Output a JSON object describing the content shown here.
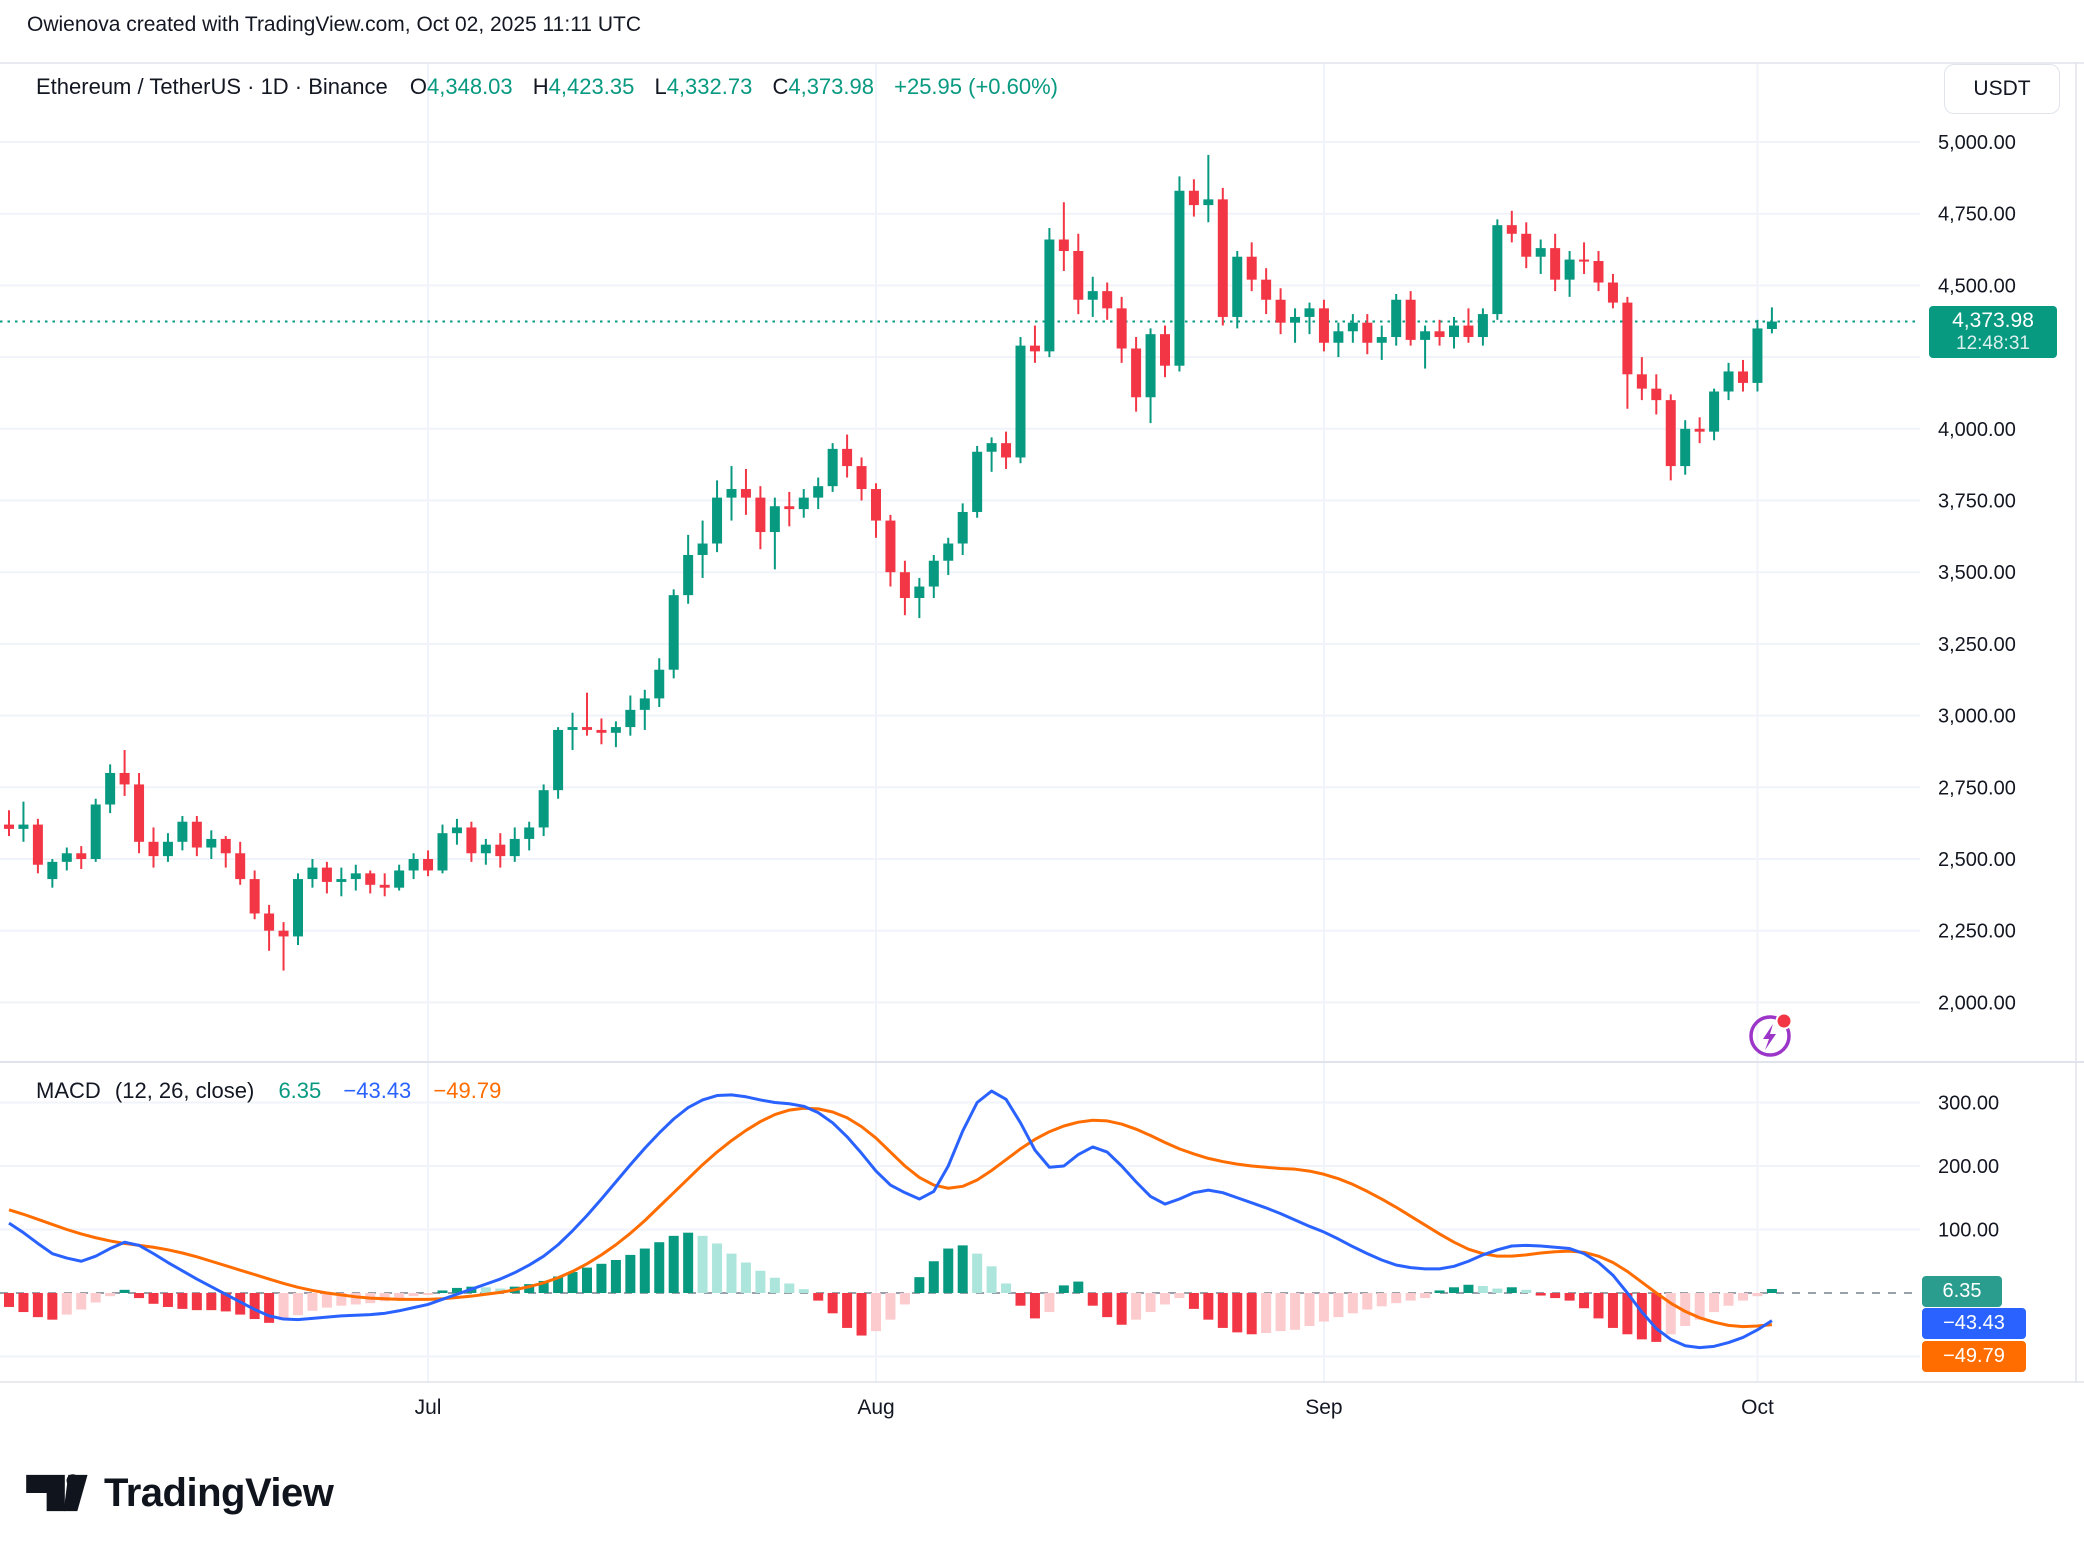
{
  "header": {
    "attribution": "Owienova created with TradingView.com, Oct 02, 2025 11:11 UTC"
  },
  "legend": {
    "symbol": "Ethereum / TetherUS · 1D · Binance",
    "o_label": "O",
    "o": "4,348.03",
    "h_label": "H",
    "h": "4,423.35",
    "l_label": "L",
    "l": "4,332.73",
    "c_label": "C",
    "c": "4,373.98",
    "change": "+25.95 (+0.60%)"
  },
  "price_axis": {
    "currency": "USDT",
    "last_price_label": "4,373.98",
    "countdown": "12:48:31"
  },
  "macd_legend": {
    "title": "MACD",
    "params": "(12, 26, close)",
    "hist_value": "6.35",
    "macd_value": "−43.43",
    "signal_value": "−49.79"
  },
  "badges": {
    "hist": "6.35",
    "macd": "−43.43",
    "signal": "−49.79"
  },
  "logo": {
    "text": "TradingView"
  },
  "colors": {
    "up": "#089981",
    "down": "#f23645",
    "macd_line": "#2962ff",
    "signal_line": "#ff6d00",
    "hist_up": "#089981",
    "hist_up_fade": "#ace5dc",
    "hist_down": "#f23645",
    "hist_down_fade": "#fccbcd",
    "grid": "#f0f3fa",
    "border": "#e0e3eb",
    "axis_text": "#131722",
    "zero_dash": "#9aa0aa",
    "last_price_line": "#089981"
  },
  "chart_data": {
    "type": "candlestick_with_macd",
    "title": "Ethereum / TetherUS 1D Binance",
    "price_axis_range": [
      2000,
      5000
    ],
    "macd_axis_range": [
      -145,
      360
    ],
    "price_ticks": [
      {
        "label": "5,000.00",
        "value": 5000
      },
      {
        "label": "4,750.00",
        "value": 4750
      },
      {
        "label": "4,500.00",
        "value": 4500
      },
      {
        "label": null,
        "value": 4250
      },
      {
        "label": "4,000.00",
        "value": 4000
      },
      {
        "label": "3,750.00",
        "value": 3750
      },
      {
        "label": "3,500.00",
        "value": 3500
      },
      {
        "label": "3,250.00",
        "value": 3250
      },
      {
        "label": "3,000.00",
        "value": 3000
      },
      {
        "label": "2,750.00",
        "value": 2750
      },
      {
        "label": "2,500.00",
        "value": 2500
      },
      {
        "label": "2,250.00",
        "value": 2250
      },
      {
        "label": "2,000.00",
        "value": 2000
      }
    ],
    "macd_ticks": [
      {
        "label": "300.00",
        "value": 300
      },
      {
        "label": "200.00",
        "value": 200
      },
      {
        "label": "100.00",
        "value": 100
      },
      {
        "label": null,
        "value": -100
      }
    ],
    "months": [
      {
        "label": "Jul",
        "i": 29
      },
      {
        "label": "Aug",
        "i": 60
      },
      {
        "label": "Sep",
        "i": 91
      },
      {
        "label": "Oct",
        "i": 121
      }
    ],
    "last_price": 4373.98,
    "candles": [
      [
        2620,
        2670,
        2580,
        2605
      ],
      [
        2605,
        2700,
        2560,
        2620
      ],
      [
        2620,
        2640,
        2450,
        2480
      ],
      [
        2430,
        2500,
        2400,
        2490
      ],
      [
        2490,
        2540,
        2460,
        2520
      ],
      [
        2520,
        2545,
        2465,
        2500
      ],
      [
        2500,
        2710,
        2490,
        2690
      ],
      [
        2690,
        2830,
        2660,
        2800
      ],
      [
        2800,
        2880,
        2720,
        2760
      ],
      [
        2760,
        2800,
        2520,
        2560
      ],
      [
        2560,
        2610,
        2470,
        2510
      ],
      [
        2510,
        2590,
        2490,
        2560
      ],
      [
        2560,
        2650,
        2530,
        2630
      ],
      [
        2630,
        2650,
        2510,
        2540
      ],
      [
        2540,
        2600,
        2500,
        2570
      ],
      [
        2570,
        2580,
        2470,
        2520
      ],
      [
        2520,
        2560,
        2410,
        2430
      ],
      [
        2430,
        2460,
        2290,
        2310
      ],
      [
        2310,
        2340,
        2180,
        2250
      ],
      [
        2250,
        2280,
        2111,
        2230
      ],
      [
        2230,
        2450,
        2200,
        2430
      ],
      [
        2430,
        2500,
        2400,
        2470
      ],
      [
        2470,
        2490,
        2380,
        2420
      ],
      [
        2420,
        2470,
        2370,
        2430
      ],
      [
        2430,
        2480,
        2390,
        2450
      ],
      [
        2450,
        2460,
        2380,
        2410
      ],
      [
        2410,
        2450,
        2370,
        2400
      ],
      [
        2400,
        2480,
        2390,
        2460
      ],
      [
        2460,
        2520,
        2430,
        2500
      ],
      [
        2500,
        2530,
        2440,
        2460
      ],
      [
        2460,
        2620,
        2450,
        2590
      ],
      [
        2590,
        2640,
        2550,
        2610
      ],
      [
        2610,
        2630,
        2490,
        2520
      ],
      [
        2520,
        2570,
        2480,
        2550
      ],
      [
        2550,
        2590,
        2470,
        2510
      ],
      [
        2510,
        2610,
        2490,
        2570
      ],
      [
        2570,
        2630,
        2530,
        2610
      ],
      [
        2610,
        2760,
        2580,
        2740
      ],
      [
        2740,
        2960,
        2710,
        2950
      ],
      [
        2950,
        3010,
        2880,
        2960
      ],
      [
        2960,
        3080,
        2930,
        2950
      ],
      [
        2950,
        2990,
        2900,
        2940
      ],
      [
        2940,
        2980,
        2890,
        2960
      ],
      [
        2960,
        3070,
        2930,
        3020
      ],
      [
        3020,
        3090,
        2950,
        3060
      ],
      [
        3060,
        3200,
        3030,
        3160
      ],
      [
        3160,
        3440,
        3130,
        3420
      ],
      [
        3420,
        3630,
        3390,
        3560
      ],
      [
        3560,
        3680,
        3480,
        3600
      ],
      [
        3600,
        3820,
        3570,
        3760
      ],
      [
        3760,
        3870,
        3680,
        3790
      ],
      [
        3790,
        3860,
        3700,
        3760
      ],
      [
        3760,
        3800,
        3580,
        3640
      ],
      [
        3640,
        3760,
        3510,
        3730
      ],
      [
        3730,
        3780,
        3660,
        3720
      ],
      [
        3720,
        3790,
        3690,
        3760
      ],
      [
        3760,
        3830,
        3720,
        3800
      ],
      [
        3800,
        3950,
        3780,
        3930
      ],
      [
        3930,
        3980,
        3830,
        3870
      ],
      [
        3870,
        3900,
        3750,
        3790
      ],
      [
        3790,
        3810,
        3620,
        3680
      ],
      [
        3680,
        3700,
        3450,
        3500
      ],
      [
        3500,
        3540,
        3350,
        3410
      ],
      [
        3410,
        3480,
        3340,
        3450
      ],
      [
        3450,
        3560,
        3410,
        3540
      ],
      [
        3540,
        3620,
        3490,
        3600
      ],
      [
        3600,
        3740,
        3560,
        3710
      ],
      [
        3710,
        3940,
        3690,
        3920
      ],
      [
        3920,
        3970,
        3850,
        3950
      ],
      [
        3950,
        3990,
        3860,
        3900
      ],
      [
        3900,
        4320,
        3880,
        4290
      ],
      [
        4290,
        4360,
        4230,
        4270
      ],
      [
        4270,
        4700,
        4250,
        4660
      ],
      [
        4660,
        4790,
        4550,
        4620
      ],
      [
        4620,
        4680,
        4400,
        4450
      ],
      [
        4450,
        4530,
        4390,
        4480
      ],
      [
        4480,
        4510,
        4380,
        4420
      ],
      [
        4420,
        4460,
        4230,
        4280
      ],
      [
        4280,
        4320,
        4060,
        4110
      ],
      [
        4110,
        4350,
        4020,
        4330
      ],
      [
        4330,
        4360,
        4180,
        4220
      ],
      [
        4220,
        4880,
        4200,
        4830
      ],
      [
        4830,
        4870,
        4740,
        4780
      ],
      [
        4780,
        4955,
        4720,
        4800
      ],
      [
        4800,
        4840,
        4360,
        4390
      ],
      [
        4390,
        4620,
        4350,
        4600
      ],
      [
        4600,
        4650,
        4480,
        4520
      ],
      [
        4520,
        4560,
        4400,
        4450
      ],
      [
        4450,
        4490,
        4330,
        4370
      ],
      [
        4370,
        4420,
        4300,
        4390
      ],
      [
        4390,
        4440,
        4330,
        4420
      ],
      [
        4420,
        4450,
        4270,
        4300
      ],
      [
        4300,
        4370,
        4250,
        4340
      ],
      [
        4340,
        4400,
        4300,
        4370
      ],
      [
        4370,
        4400,
        4260,
        4300
      ],
      [
        4300,
        4360,
        4240,
        4320
      ],
      [
        4320,
        4470,
        4290,
        4450
      ],
      [
        4450,
        4480,
        4290,
        4310
      ],
      [
        4310,
        4360,
        4210,
        4340
      ],
      [
        4340,
        4380,
        4290,
        4320
      ],
      [
        4320,
        4390,
        4280,
        4360
      ],
      [
        4360,
        4420,
        4300,
        4320
      ],
      [
        4320,
        4420,
        4290,
        4400
      ],
      [
        4400,
        4730,
        4380,
        4710
      ],
      [
        4710,
        4760,
        4650,
        4680
      ],
      [
        4680,
        4720,
        4560,
        4600
      ],
      [
        4600,
        4660,
        4540,
        4630
      ],
      [
        4630,
        4680,
        4480,
        4520
      ],
      [
        4520,
        4620,
        4460,
        4590
      ],
      [
        4590,
        4650,
        4540,
        4585
      ],
      [
        4585,
        4620,
        4480,
        4510
      ],
      [
        4510,
        4540,
        4420,
        4440
      ],
      [
        4440,
        4460,
        4070,
        4190
      ],
      [
        4190,
        4250,
        4100,
        4140
      ],
      [
        4140,
        4190,
        4050,
        4100
      ],
      [
        4100,
        4120,
        3820,
        3870
      ],
      [
        3870,
        4030,
        3840,
        4000
      ],
      [
        4000,
        4040,
        3950,
        3990
      ],
      [
        3990,
        4140,
        3960,
        4130
      ],
      [
        4130,
        4230,
        4100,
        4200
      ],
      [
        4200,
        4240,
        4130,
        4160
      ],
      [
        4160,
        4380,
        4130,
        4350
      ],
      [
        4348.03,
        4423.35,
        4332.73,
        4373.98
      ]
    ],
    "macd": {
      "histogram": [
        -22,
        -30,
        -38,
        -42,
        -34,
        -26,
        -15,
        -5,
        5,
        -8,
        -17,
        -22,
        -25,
        -27,
        -27,
        -29,
        -34,
        -41,
        -47,
        -43,
        -35,
        -28,
        -23,
        -20,
        -18,
        -16,
        -13,
        -9,
        -5,
        -2,
        4,
        8,
        10,
        9,
        7,
        10,
        14,
        19,
        26,
        33,
        40,
        46,
        52,
        60,
        70,
        80,
        90,
        95,
        90,
        78,
        62,
        48,
        35,
        24,
        15,
        6,
        -12,
        -32,
        -55,
        -67,
        -60,
        -42,
        -18,
        25,
        50,
        70,
        75,
        62,
        42,
        15,
        -20,
        -40,
        -30,
        12,
        18,
        -20,
        -38,
        -50,
        -42,
        -30,
        -18,
        -8,
        -25,
        -42,
        -55,
        -62,
        -65,
        -63,
        -60,
        -58,
        -52,
        -45,
        -38,
        -32,
        -26,
        -21,
        -16,
        -12,
        -8,
        4,
        9,
        13,
        11,
        7,
        9,
        5,
        -4,
        -8,
        -12,
        -24,
        -40,
        -55,
        -65,
        -73,
        -77,
        -65,
        -52,
        -42,
        -30,
        -20,
        -12,
        -5,
        6.35
      ],
      "macd_line": [
        110,
        95,
        78,
        62,
        55,
        50,
        58,
        70,
        80,
        75,
        62,
        48,
        35,
        22,
        10,
        -2,
        -14,
        -26,
        -36,
        -41,
        -42,
        -40,
        -38,
        -36,
        -35,
        -34,
        -32,
        -28,
        -23,
        -18,
        -10,
        -2,
        6,
        14,
        22,
        32,
        44,
        58,
        76,
        98,
        122,
        148,
        175,
        202,
        228,
        252,
        274,
        292,
        304,
        311,
        312,
        309,
        304,
        300,
        298,
        294,
        284,
        268,
        246,
        220,
        192,
        170,
        158,
        148,
        160,
        200,
        255,
        300,
        318,
        305,
        268,
        225,
        198,
        200,
        218,
        230,
        222,
        200,
        175,
        152,
        140,
        148,
        158,
        162,
        158,
        150,
        142,
        134,
        125,
        115,
        105,
        96,
        85,
        73,
        62,
        52,
        44,
        40,
        38,
        38,
        42,
        50,
        60,
        68,
        74,
        75,
        74,
        72,
        70,
        62,
        48,
        28,
        0,
        -30,
        -56,
        -73,
        -83,
        -86,
        -84,
        -78,
        -70,
        -58,
        -43.43
      ],
      "signal_line": [
        131,
        124,
        116,
        108,
        100,
        93,
        87,
        82,
        78,
        75,
        72,
        68,
        63,
        57,
        50,
        43,
        36,
        29,
        22,
        15,
        9,
        4,
        0,
        -3,
        -6,
        -8,
        -9,
        -10,
        -10,
        -10,
        -9,
        -7,
        -5,
        -2,
        1,
        5,
        10,
        16,
        24,
        34,
        46,
        60,
        76,
        94,
        114,
        136,
        158,
        180,
        202,
        222,
        240,
        256,
        270,
        281,
        288,
        291,
        290,
        285,
        276,
        262,
        244,
        222,
        200,
        182,
        170,
        165,
        168,
        178,
        193,
        210,
        227,
        242,
        254,
        263,
        269,
        272,
        271,
        266,
        258,
        248,
        237,
        227,
        219,
        212,
        207,
        203,
        200,
        198,
        196,
        195,
        192,
        187,
        180,
        171,
        160,
        148,
        135,
        121,
        107,
        93,
        80,
        69,
        62,
        58,
        58,
        60,
        63,
        65,
        66,
        64,
        58,
        48,
        34,
        17,
        0,
        -16,
        -29,
        -39,
        -46,
        -51,
        -53,
        -52,
        -49.79
      ],
      "last": {
        "hist": 6.35,
        "macd": -43.43,
        "signal": -49.79
      }
    }
  }
}
